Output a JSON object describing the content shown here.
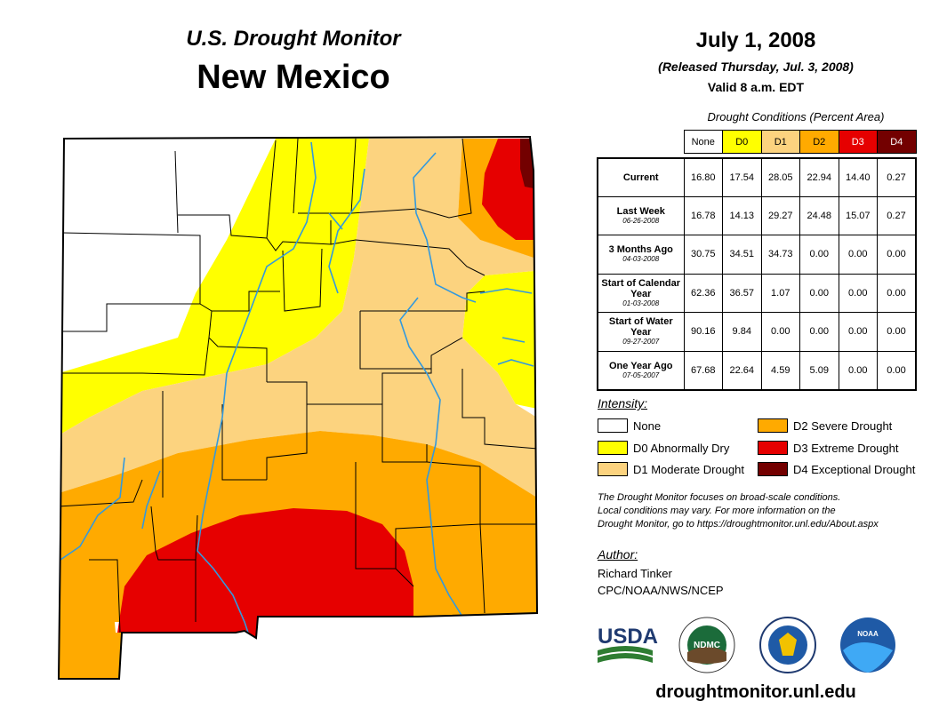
{
  "header": {
    "subtitle": "U.S. Drought Monitor",
    "state": "New Mexico",
    "date": "July 1, 2008",
    "released": "(Released Thursday, Jul. 3, 2008)",
    "valid": "Valid 8 a.m. EDT"
  },
  "table": {
    "caption": "Drought Conditions (Percent Area)",
    "columns": [
      {
        "label": "None",
        "color": "#ffffff"
      },
      {
        "label": "D0",
        "color": "#ffff00"
      },
      {
        "label": "D1",
        "color": "#fcd37f"
      },
      {
        "label": "D2",
        "color": "#ffaa00"
      },
      {
        "label": "D3",
        "color": "#e60000"
      },
      {
        "label": "D4",
        "color": "#730000"
      }
    ],
    "rows": [
      {
        "label": "Current",
        "sub": "",
        "values": [
          "16.80",
          "17.54",
          "28.05",
          "22.94",
          "14.40",
          "0.27"
        ]
      },
      {
        "label": "Last Week",
        "sub": "06-26-2008",
        "values": [
          "16.78",
          "14.13",
          "29.27",
          "24.48",
          "15.07",
          "0.27"
        ]
      },
      {
        "label": "3 Months Ago",
        "sub": "04-03-2008",
        "values": [
          "30.75",
          "34.51",
          "34.73",
          "0.00",
          "0.00",
          "0.00"
        ]
      },
      {
        "label": "Start of Calendar Year",
        "sub": "01-03-2008",
        "values": [
          "62.36",
          "36.57",
          "1.07",
          "0.00",
          "0.00",
          "0.00"
        ]
      },
      {
        "label": "Start of Water Year",
        "sub": "09-27-2007",
        "values": [
          "90.16",
          "9.84",
          "0.00",
          "0.00",
          "0.00",
          "0.00"
        ]
      },
      {
        "label": "One Year Ago",
        "sub": "07-05-2007",
        "values": [
          "67.68",
          "22.64",
          "4.59",
          "5.09",
          "0.00",
          "0.00"
        ]
      }
    ]
  },
  "legend": {
    "title": "Intensity:",
    "items": [
      {
        "label": "None",
        "color": "#ffffff"
      },
      {
        "label": "D0 Abnormally Dry",
        "color": "#ffff00"
      },
      {
        "label": "D1 Moderate Drought",
        "color": "#fcd37f"
      },
      {
        "label": "D2 Severe Drought",
        "color": "#ffaa00"
      },
      {
        "label": "D3 Extreme Drought",
        "color": "#e60000"
      },
      {
        "label": "D4 Exceptional Drought",
        "color": "#730000"
      }
    ]
  },
  "note": {
    "line1": "The Drought Monitor focuses on broad-scale conditions.",
    "line2": "Local conditions may vary. For more information on the",
    "line3": "Drought Monitor, go to https://droughtmonitor.unl.edu/About.aspx"
  },
  "author": {
    "title": "Author:",
    "name": "Richard Tinker",
    "org": "CPC/NOAA/NWS/NCEP"
  },
  "logos": {
    "usda": "USDA",
    "ndmc": "NDMC",
    "noaa": "NOAA"
  },
  "website": "droughtmonitor.unl.edu"
}
